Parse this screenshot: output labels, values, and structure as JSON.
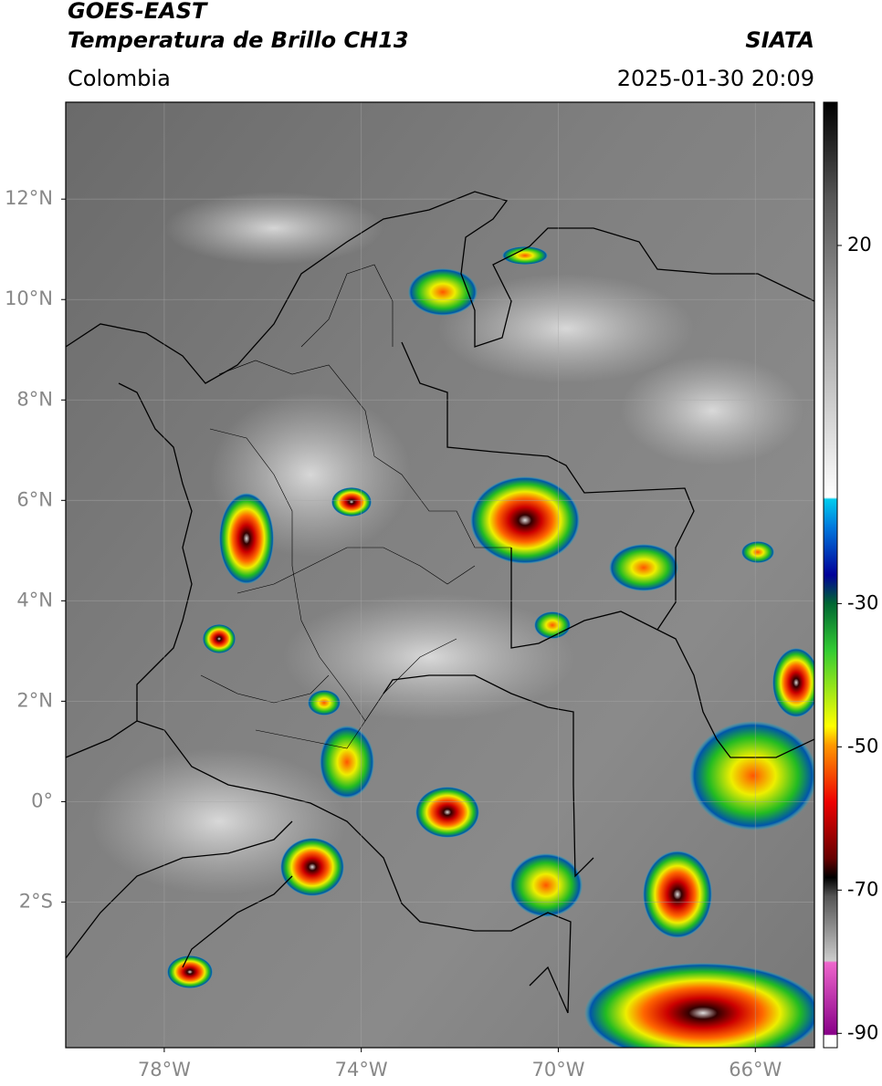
{
  "header": {
    "title_line1": "GOES-EAST",
    "title_line2": "Temperatura de Brillo CH13",
    "source": "SIATA",
    "region": "Colombia",
    "datetime": "2025-01-30 20:09"
  },
  "map": {
    "xlim": [
      -80,
      -64.8
    ],
    "ylim": [
      -4.9,
      13.93
    ],
    "lat_ticks": [
      {
        "value": 12,
        "label": "12°N"
      },
      {
        "value": 10,
        "label": "10°N"
      },
      {
        "value": 8,
        "label": "8°N"
      },
      {
        "value": 6,
        "label": "6°N"
      },
      {
        "value": 4,
        "label": "4°N"
      },
      {
        "value": 2,
        "label": "2°N"
      },
      {
        "value": 0,
        "label": "0°"
      },
      {
        "value": -2,
        "label": "2°S"
      }
    ],
    "lon_ticks": [
      {
        "value": -78,
        "label": "78°W"
      },
      {
        "value": -74,
        "label": "74°W"
      },
      {
        "value": -70,
        "label": "70°W"
      },
      {
        "value": -66,
        "label": "66°W"
      }
    ]
  },
  "colorbar": {
    "lim": [
      -92,
      40
    ],
    "ticks": [
      20,
      -30,
      -50,
      -70,
      -90
    ]
  }
}
